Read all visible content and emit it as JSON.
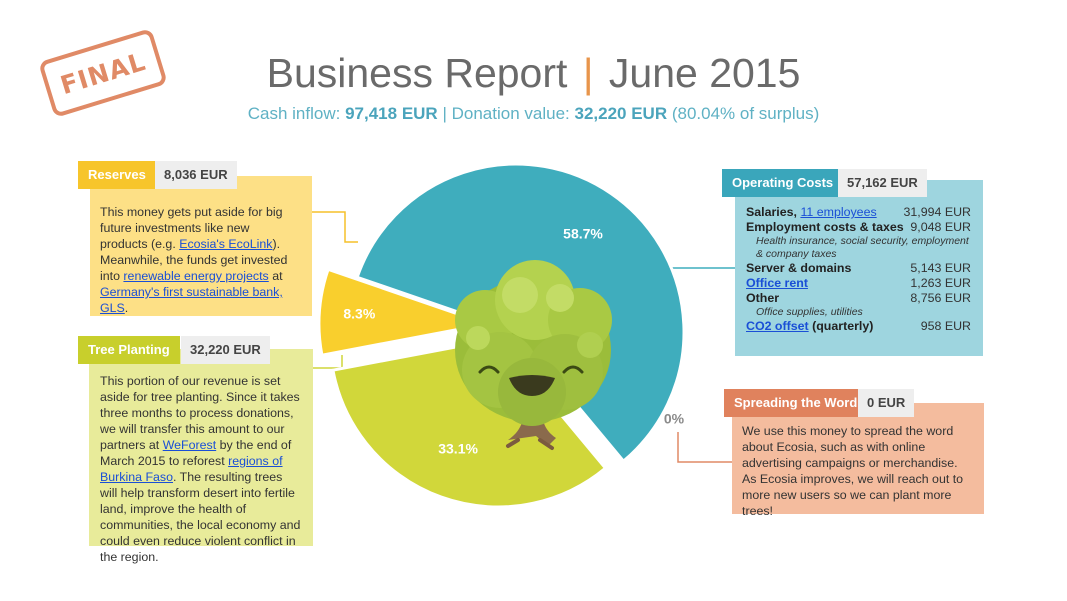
{
  "stamp": "FINAL",
  "header": {
    "title_left": "Business Report",
    "title_sep": "|",
    "title_right": "June 2015",
    "sub_cash_label": "Cash inflow:",
    "sub_cash_value": "97,418 EUR",
    "sub_sep": "|",
    "sub_donation_label": "Donation value:",
    "sub_donation_value": "32,220 EUR",
    "sub_donation_pct": "(80.04% of surplus)"
  },
  "colors": {
    "operating": "#3fadbd",
    "reserves": "#f9cf2d",
    "tree": "#d1d73a",
    "spread": "#e08a66",
    "tag_reserves": "#f7c52b",
    "tag_tree": "#c8cf2c",
    "tag_ops": "#3aa6bb",
    "tag_spread": "#e0825d"
  },
  "chart_data": {
    "type": "pie",
    "title": "Business Report | June 2015",
    "slices": [
      {
        "name": "Operating Costs",
        "value": 57162,
        "percent_label": "58.7%"
      },
      {
        "name": "Spreading the Word",
        "value": 0,
        "percent_label": "0%"
      },
      {
        "name": "Tree Planting",
        "value": 32220,
        "percent_label": "33.1%"
      },
      {
        "name": "Reserves",
        "value": 8036,
        "percent_label": "8.3%"
      }
    ]
  },
  "reserves": {
    "tag": "Reserves",
    "amount": "8,036 EUR",
    "t1": "This money gets put aside for big future investments like new products (e.g. ",
    "l1": "Ecosia's EcoLink",
    "t2": "). Meanwhile, the funds get invested into ",
    "l2": "renewable energy projects",
    "t3": " at ",
    "l3": "Germany's first sustainable bank, GLS",
    "t4": "."
  },
  "tree_planting": {
    "tag": "Tree Planting",
    "amount": "32,220 EUR",
    "t1": "This portion of our revenue is set aside for tree planting. Since it takes three months to process donations, we will transfer this amount to our partners at ",
    "l1": "WeForest",
    "t2": " by the end of March 2015 to reforest ",
    "l2": "regions of Burkina Faso",
    "t3": ". The resulting trees will help transform desert into fertile land, improve the health of communities, the local economy and could even reduce violent conflict in the region."
  },
  "operating": {
    "tag": "Operating Costs",
    "amount": "57,162 EUR",
    "salaries_label": "Salaries,",
    "salaries_link": "11 employees",
    "salaries_value": "31,994 EUR",
    "employment_label": "Employment costs & taxes",
    "employment_value": "9,048 EUR",
    "employment_note": "Health insurance, social security, employment & company taxes",
    "server_label": "Server & domains",
    "server_value": "5,143 EUR",
    "office_link": "Office rent",
    "office_value": "1,263 EUR",
    "other_label": "Other",
    "other_value": "8,756 EUR",
    "other_note": "Office supplies, utilities",
    "co2_link": "CO2 offset",
    "co2_suffix": "(quarterly)",
    "co2_value": "958 EUR"
  },
  "spreading": {
    "tag": "Spreading the Word",
    "amount": "0 EUR",
    "text": "We use this money to spread the word about Ecosia, such as with online advertising campaigns or merchandise. As Ecosia improves, we will reach out to more new users so we can plant more trees!"
  }
}
